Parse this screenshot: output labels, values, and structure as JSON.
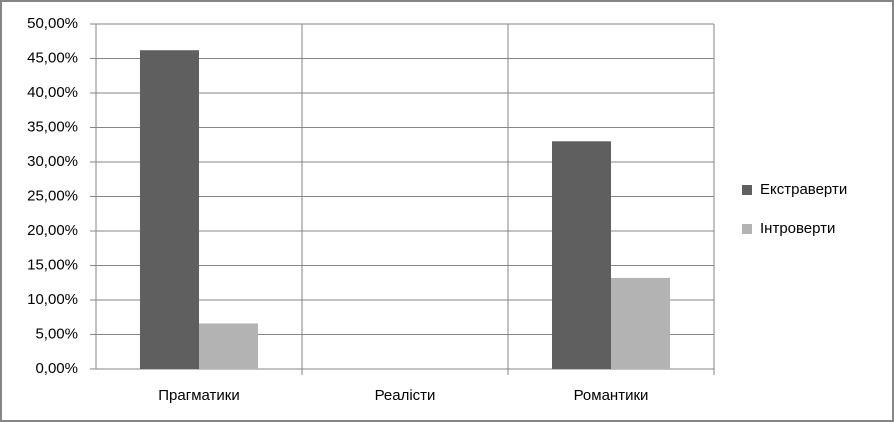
{
  "chart_data": {
    "type": "bar",
    "categories": [
      "Прагматики",
      "Реалісти",
      "Романтики"
    ],
    "series": [
      {
        "name": "Екстраверти",
        "color": "#5f5f5f",
        "values": [
          46.2,
          0,
          33.0
        ]
      },
      {
        "name": "Інтроверти",
        "color": "#b3b3b3",
        "values": [
          6.6,
          0,
          13.2
        ]
      }
    ],
    "ylim": [
      0,
      50
    ],
    "yticks": [
      {
        "value": 0,
        "label": "0,00%"
      },
      {
        "value": 5,
        "label": "5,00%"
      },
      {
        "value": 10,
        "label": "10,00%"
      },
      {
        "value": 15,
        "label": "15,00%"
      },
      {
        "value": 20,
        "label": "20,00%"
      },
      {
        "value": 25,
        "label": "25,00%"
      },
      {
        "value": 30,
        "label": "30,00%"
      },
      {
        "value": 35,
        "label": "35,00%"
      },
      {
        "value": 40,
        "label": "40,00%"
      },
      {
        "value": 45,
        "label": "45,00%"
      },
      {
        "value": 50,
        "label": "50,00%"
      }
    ],
    "grid": true,
    "legend": "right"
  }
}
